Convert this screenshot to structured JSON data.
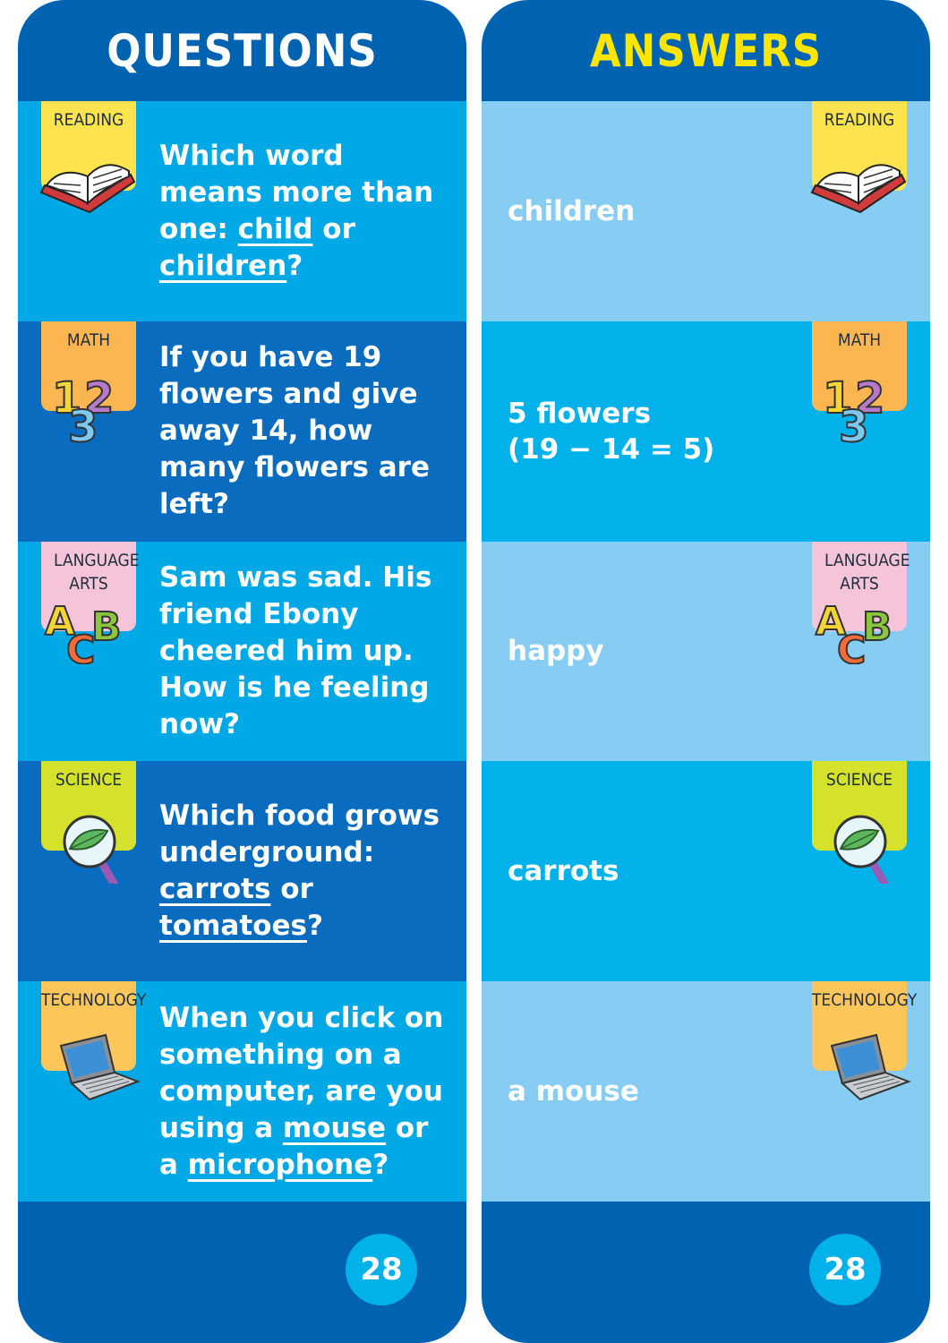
{
  "questions_card": {
    "title": "QUESTIONS",
    "page_number": "28",
    "rows": [
      {
        "category": "READING",
        "icon": "open-book-icon",
        "tab_color": "#fde34d",
        "bg": "#00a9e6",
        "segments": [
          {
            "t": "Which word means more than one: ",
            "u": false
          },
          {
            "t": "child",
            "u": true
          },
          {
            "t": " or ",
            "u": false
          },
          {
            "t": "children",
            "u": true
          },
          {
            "t": "?",
            "u": false
          }
        ]
      },
      {
        "category": "MATH",
        "icon": "numbers-123-icon",
        "tab_color": "#fbb652",
        "bg": "#0a6cbf",
        "segments": [
          {
            "t": "If you have 19 flowers and give away 14, how many flowers are left?",
            "u": false
          }
        ]
      },
      {
        "category": "LANGUAGE ARTS",
        "icon": "letters-abc-icon",
        "tab_color": "#f6c4d8",
        "bg": "#00a9e6",
        "segments": [
          {
            "t": "Sam was sad. His friend Ebony cheered him up. How is he feeling now?",
            "u": false
          }
        ]
      },
      {
        "category": "SCIENCE",
        "icon": "magnifying-glass-leaf-icon",
        "tab_color": "#d4e22c",
        "bg": "#0a6cbf",
        "segments": [
          {
            "t": "Which food grows underground: ",
            "u": false
          },
          {
            "t": "carrots",
            "u": true
          },
          {
            "t": " or ",
            "u": false
          },
          {
            "t": "tomatoes",
            "u": true
          },
          {
            "t": "?",
            "u": false
          }
        ]
      },
      {
        "category": "TECHNOLOGY",
        "icon": "laptop-icon",
        "tab_color": "#fcc65a",
        "bg": "#00a9e6",
        "segments": [
          {
            "t": "When you click on something on a computer, are you using a ",
            "u": false
          },
          {
            "t": "mouse",
            "u": true
          },
          {
            "t": " or a ",
            "u": false
          },
          {
            "t": "microphone",
            "u": true
          },
          {
            "t": "?",
            "u": false
          }
        ]
      }
    ]
  },
  "answers_card": {
    "title": "ANSWERS",
    "page_number": "28",
    "rows": [
      {
        "category": "READING",
        "icon": "open-book-icon",
        "tab_color": "#fde34d",
        "bg": "#87cdf3",
        "lines": [
          "children"
        ]
      },
      {
        "category": "MATH",
        "icon": "numbers-123-icon",
        "tab_color": "#fbb652",
        "bg": "#00b1ea",
        "lines": [
          "5 flowers",
          "(19 − 14 = 5)"
        ]
      },
      {
        "category": "LANGUAGE ARTS",
        "icon": "letters-abc-icon",
        "tab_color": "#f6c4d8",
        "bg": "#87cdf3",
        "lines": [
          "happy"
        ]
      },
      {
        "category": "SCIENCE",
        "icon": "magnifying-glass-leaf-icon",
        "tab_color": "#d4e22c",
        "bg": "#00b1ea",
        "lines": [
          "carrots"
        ]
      },
      {
        "category": "TECHNOLOGY",
        "icon": "laptop-icon",
        "tab_color": "#fcc65a",
        "bg": "#87cdf3",
        "lines": [
          "a mouse"
        ]
      }
    ]
  },
  "colors": {
    "header_footer": "#0063b2",
    "answers_title": "#ffe600",
    "badge": "#00b1ea"
  }
}
